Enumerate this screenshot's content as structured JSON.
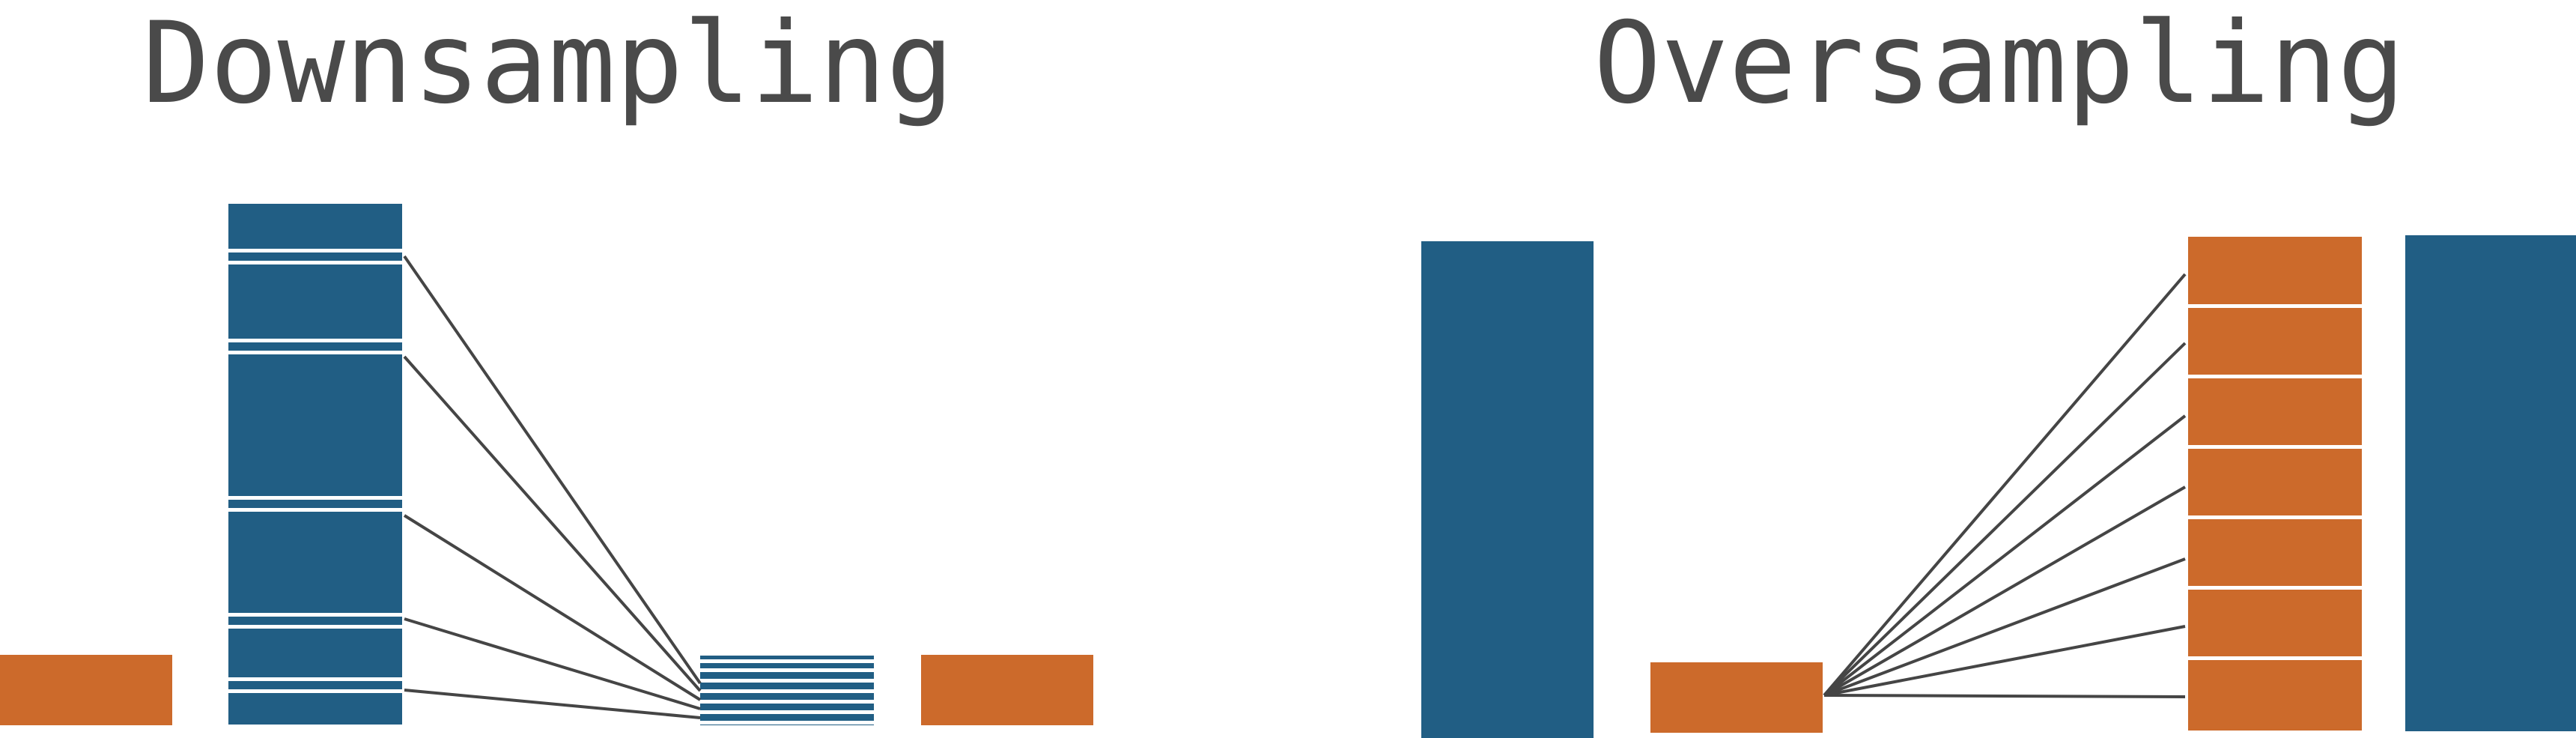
{
  "titles": {
    "left": "Downsampling",
    "right": "Oversampling"
  },
  "colors": {
    "majority": "#215e84",
    "minority": "#cc6a2b",
    "line": "#454545",
    "divider": "#ffffff",
    "title": "#4a4a4a"
  }
}
